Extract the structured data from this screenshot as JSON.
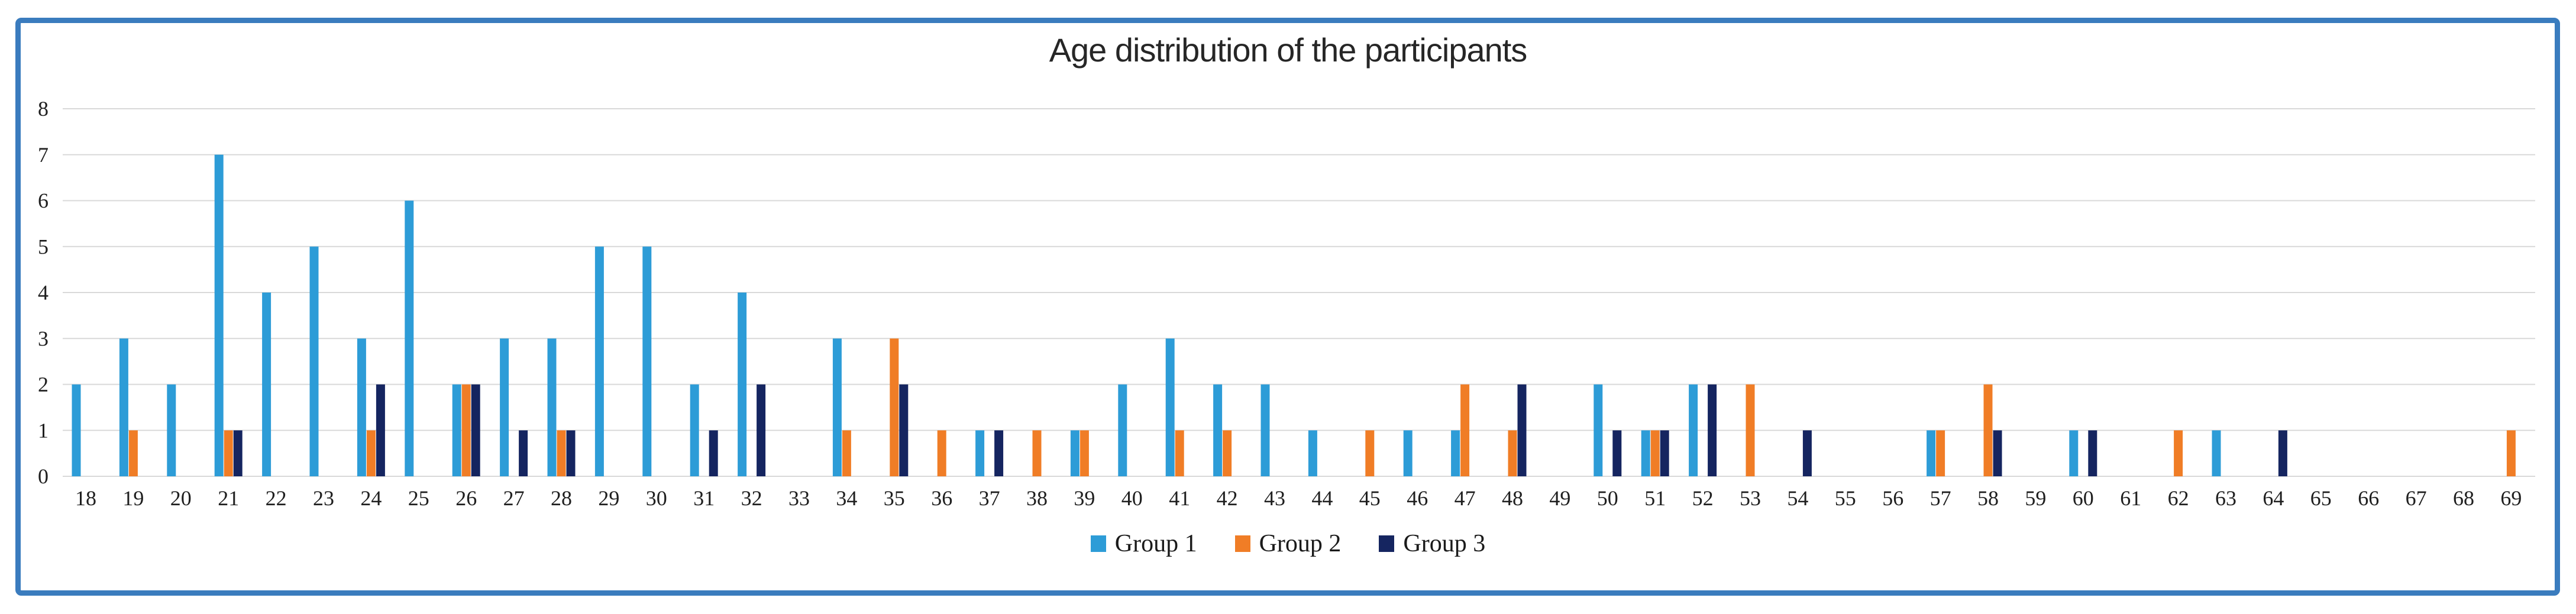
{
  "chart_data": {
    "type": "bar",
    "title": "Age distribution of the participants",
    "categories": [
      "18",
      "19",
      "20",
      "21",
      "22",
      "23",
      "24",
      "25",
      "26",
      "27",
      "28",
      "29",
      "30",
      "31",
      "32",
      "33",
      "34",
      "35",
      "36",
      "37",
      "38",
      "39",
      "40",
      "41",
      "42",
      "43",
      "44",
      "45",
      "46",
      "47",
      "48",
      "49",
      "50",
      "51",
      "52",
      "53",
      "54",
      "55",
      "56",
      "57",
      "58",
      "59",
      "60",
      "61",
      "62",
      "63",
      "64",
      "65",
      "66",
      "67",
      "68",
      "69"
    ],
    "series": [
      {
        "name": "Group 1",
        "color": "#2D9CD7",
        "values": [
          2,
          3,
          2,
          7,
          4,
          5,
          3,
          6,
          2,
          3,
          3,
          5,
          5,
          2,
          4,
          0,
          3,
          0,
          0,
          1,
          0,
          1,
          2,
          3,
          2,
          2,
          1,
          0,
          1,
          1,
          0,
          0,
          2,
          1,
          2,
          0,
          0,
          0,
          0,
          1,
          0,
          0,
          1,
          0,
          0,
          1,
          0,
          0,
          0,
          0,
          0,
          0
        ]
      },
      {
        "name": "Group 2",
        "color": "#F07D26",
        "values": [
          0,
          1,
          0,
          1,
          0,
          0,
          1,
          0,
          2,
          0,
          1,
          0,
          0,
          0,
          0,
          0,
          1,
          3,
          1,
          0,
          1,
          1,
          0,
          1,
          1,
          0,
          0,
          1,
          0,
          2,
          1,
          0,
          0,
          1,
          0,
          2,
          0,
          0,
          0,
          1,
          2,
          0,
          0,
          0,
          1,
          0,
          0,
          0,
          0,
          0,
          0,
          1
        ]
      },
      {
        "name": "Group 3",
        "color": "#152560",
        "values": [
          0,
          0,
          0,
          1,
          0,
          0,
          2,
          0,
          2,
          1,
          1,
          0,
          0,
          1,
          2,
          0,
          0,
          2,
          0,
          1,
          0,
          0,
          0,
          0,
          0,
          0,
          0,
          0,
          0,
          0,
          2,
          0,
          1,
          1,
          2,
          0,
          1,
          0,
          0,
          0,
          1,
          0,
          1,
          0,
          0,
          0,
          1,
          0,
          0,
          0,
          0,
          0
        ]
      }
    ],
    "xlabel": "",
    "ylabel": "",
    "ylim": [
      0,
      8
    ],
    "yticks": [
      0,
      1,
      2,
      3,
      4,
      5,
      6,
      7,
      8
    ],
    "grid": "horizontal",
    "legend_position": "bottom",
    "frame_color": "#3A7CBE",
    "grid_color": "#D9D9D9",
    "text_color": "#262626"
  }
}
